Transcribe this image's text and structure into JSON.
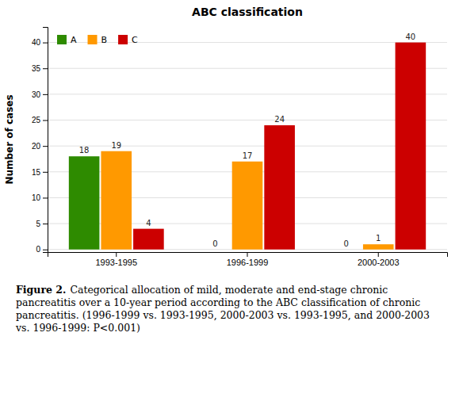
{
  "chart_data": {
    "type": "bar",
    "title": "ABC classification",
    "ylabel": "Number of cases",
    "categories": [
      "1993-1995",
      "1996-1999",
      "2000-2003"
    ],
    "series": [
      {
        "name": "A",
        "color": "#2e8b00",
        "values": [
          18,
          0,
          0
        ]
      },
      {
        "name": "B",
        "color": "#ff9900",
        "values": [
          19,
          17,
          1
        ]
      },
      {
        "name": "C",
        "color": "#cc0000",
        "values": [
          4,
          24,
          40
        ]
      }
    ],
    "ylim": [
      -0.5,
      43
    ],
    "yticks": [
      0,
      5,
      10,
      15,
      20,
      25,
      30,
      35,
      40
    ],
    "grid": true,
    "legend": "upper left",
    "data_labels": true,
    "annotations": [
      "Figure 2.",
      "Categorical allocation of mild, moderate and end-stage chronic pancreatitis over a 10-year period according to the ABC classification of chronic pancreatitis. (1996-1999 vs. 1993-1995, 2000-2003 vs. 1993-1995, and 2000-2003 vs. 1996-1999: P<0.001)"
    ]
  }
}
